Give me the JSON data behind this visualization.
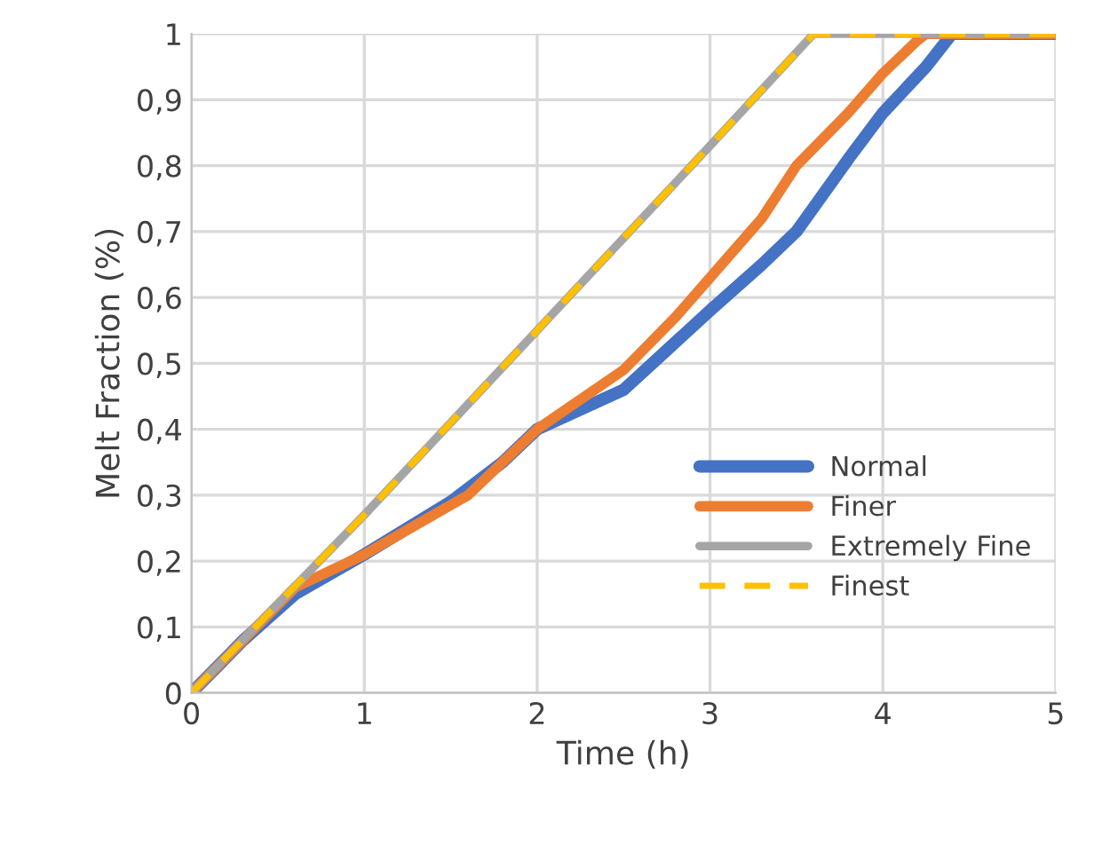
{
  "chart_data": {
    "type": "line",
    "xlabel": "Time (h)",
    "ylabel": "Melt Fraction (%)",
    "xlim": [
      0,
      5
    ],
    "xticks": [
      0,
      1,
      2,
      3,
      4,
      5
    ],
    "ylim": [
      0,
      1
    ],
    "yticks": [
      0,
      {
        "value": 0.1,
        "label": "0,1"
      },
      {
        "value": 0.2,
        "label": "0,2"
      },
      {
        "value": 0.3,
        "label": "0,3"
      },
      {
        "value": 0.4,
        "label": "0,4"
      },
      {
        "value": 0.5,
        "label": "0,5"
      },
      {
        "value": 0.6,
        "label": "0,6"
      },
      {
        "value": 0.7,
        "label": "0,7"
      },
      {
        "value": 0.8,
        "label": "0,8"
      },
      {
        "value": 0.9,
        "label": "0,9"
      },
      1
    ],
    "grid": true,
    "legend": "right",
    "marker": "none",
    "series": [
      {
        "name": "Normal",
        "color": "#4472c4",
        "line_style": "solid",
        "x": [
          0,
          0.3,
          0.6,
          1,
          1.5,
          1.8,
          2,
          2.5,
          3,
          3.3,
          3.5,
          3.8,
          4,
          4.25,
          4.4,
          5
        ],
        "values": [
          0,
          0.08,
          0.15,
          0.21,
          0.29,
          0.35,
          0.4,
          0.46,
          0.58,
          0.65,
          0.7,
          0.81,
          0.88,
          0.95,
          1,
          1
        ]
      },
      {
        "name": "Finer",
        "color": "#ed7d31",
        "line_style": "solid",
        "x": [
          0,
          0.3,
          0.6,
          1,
          1.4,
          1.6,
          2,
          2.5,
          2.8,
          3,
          3.3,
          3.5,
          3.8,
          4,
          4.2,
          4.25,
          5
        ],
        "values": [
          0,
          0.08,
          0.16,
          0.21,
          0.27,
          0.3,
          0.4,
          0.49,
          0.57,
          0.63,
          0.72,
          0.8,
          0.88,
          0.94,
          0.99,
          1,
          1
        ]
      },
      {
        "name": "Extremely Fine",
        "color": "#a5a5a5",
        "line_style": "solid",
        "x": [
          0,
          1,
          2,
          3,
          3.6,
          5
        ],
        "values": [
          0,
          0.27,
          0.55,
          0.83,
          1,
          1
        ]
      },
      {
        "name": "Finest",
        "color": "#ffc000",
        "line_style": "dashed",
        "x": [
          0,
          1,
          2,
          3,
          3.6,
          5
        ],
        "values": [
          0,
          0.27,
          0.55,
          0.83,
          1,
          1
        ]
      }
    ]
  }
}
